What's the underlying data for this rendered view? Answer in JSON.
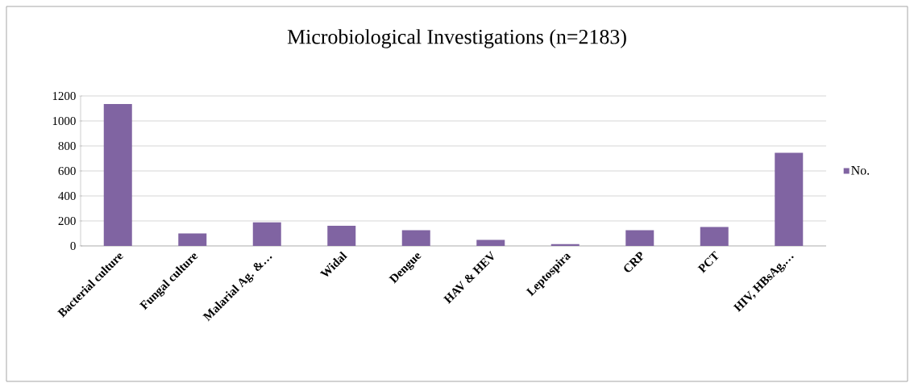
{
  "chart_data": {
    "type": "bar",
    "title": "Microbiological Investigations (n=2183)",
    "categories": [
      "Bacterial culture",
      "Fungal culture",
      "Malarial Ag. &…",
      "Widal",
      "Dengue",
      "HAV & HEV",
      "Leptospira",
      "CRP",
      "PCT",
      "HIV, HBsAg,…"
    ],
    "series": [
      {
        "name": "No.",
        "color": "#8064a2",
        "values": [
          1135,
          100,
          189,
          161,
          125,
          49,
          15,
          125,
          152,
          745
        ]
      }
    ],
    "ylim": [
      0,
      1200
    ],
    "yticks": [
      0,
      200,
      400,
      600,
      800,
      1000,
      1200
    ],
    "grid": "y",
    "legend": "right"
  }
}
